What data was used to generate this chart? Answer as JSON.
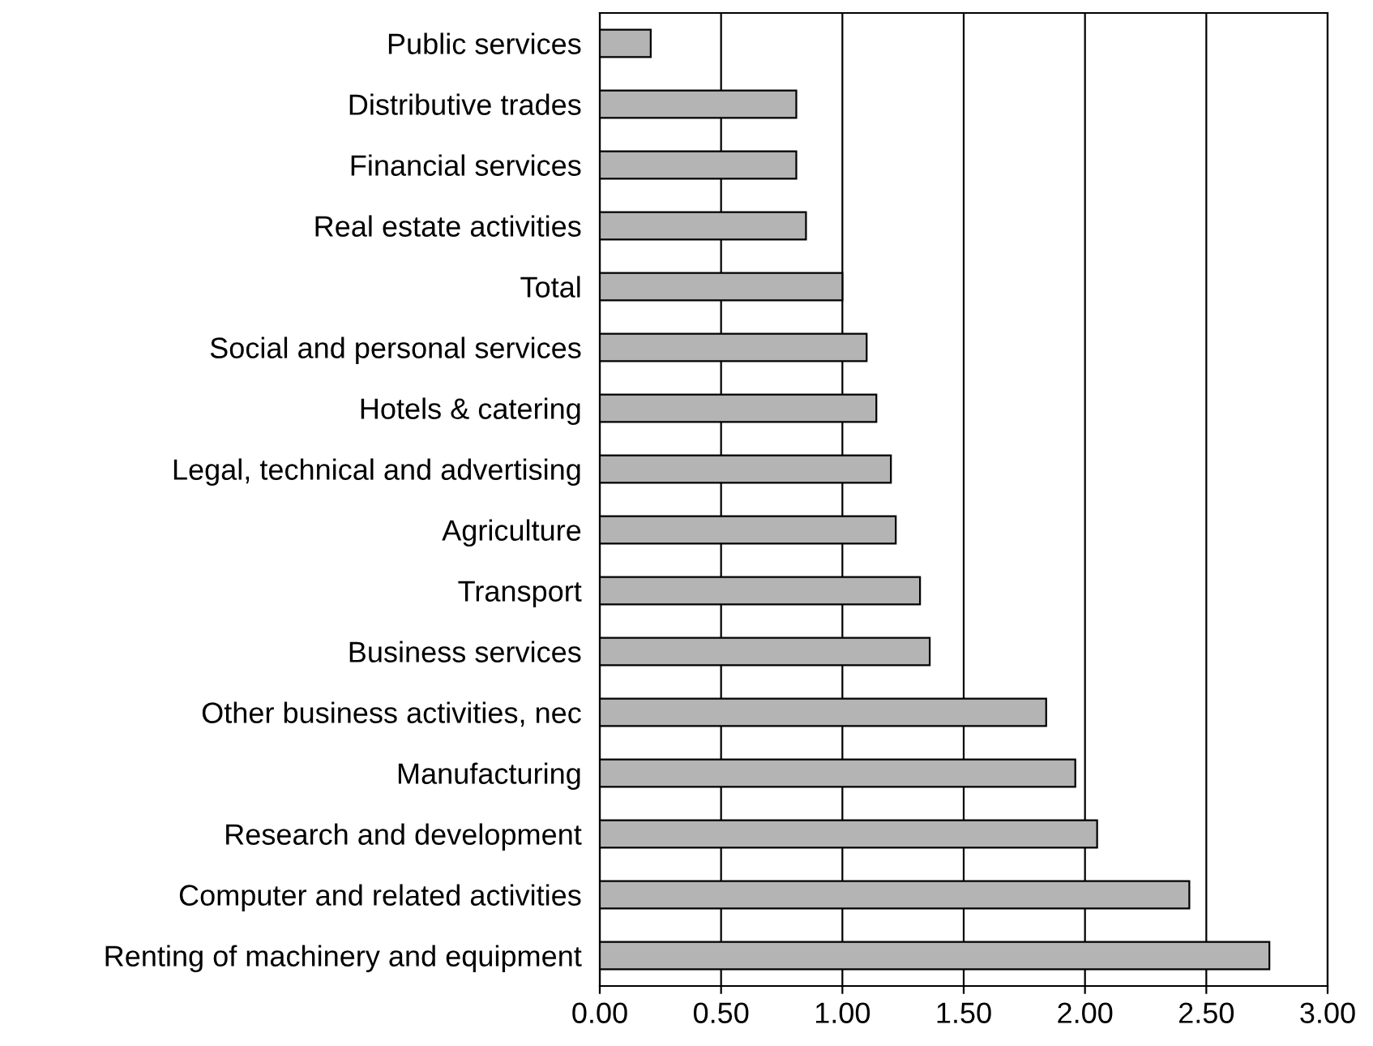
{
  "chart_data": {
    "type": "bar",
    "orientation": "horizontal",
    "categories": [
      "Public services",
      "Distributive trades",
      "Financial services",
      "Real estate activities",
      "Total",
      "Social and personal services",
      "Hotels & catering",
      "Legal, technical and advertising",
      "Agriculture",
      "Transport",
      "Business services",
      "Other business activities, nec",
      "Manufacturing",
      "Research and development",
      "Computer and related activities",
      "Renting of machinery and equipment"
    ],
    "values": [
      0.21,
      0.81,
      0.81,
      0.85,
      1.0,
      1.1,
      1.14,
      1.2,
      1.22,
      1.32,
      1.36,
      1.84,
      1.96,
      2.05,
      2.43,
      2.76
    ],
    "color": "#b4b4b4",
    "xlim": [
      0,
      3
    ],
    "xticks": [
      {
        "value": 0,
        "label": "0.00"
      },
      {
        "value": 0.5,
        "label": "0.50"
      },
      {
        "value": 1,
        "label": "1.00"
      },
      {
        "value": 1.5,
        "label": "1.50"
      },
      {
        "value": 2,
        "label": "2.00"
      },
      {
        "value": 2.5,
        "label": "2.50"
      },
      {
        "value": 3,
        "label": "3.00"
      }
    ],
    "grid": "x",
    "legend": false
  }
}
